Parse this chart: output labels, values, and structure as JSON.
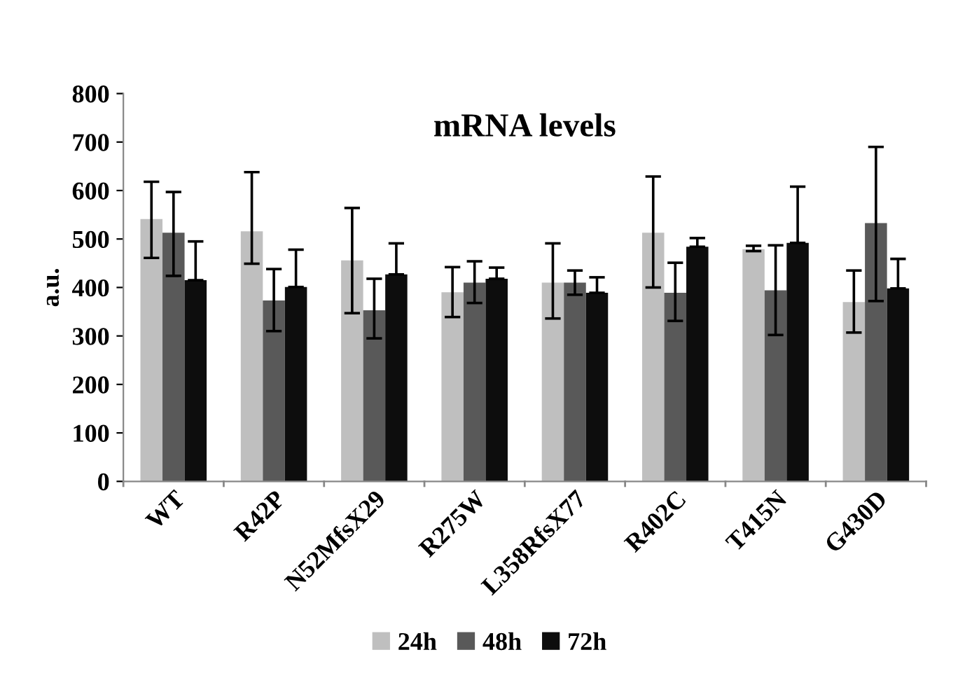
{
  "chart_data": {
    "type": "bar",
    "title": "mRNA levels",
    "ylabel": "a.u.",
    "categories": [
      "WT",
      "R42P",
      "N52MfsX29",
      "R275W",
      "L358RfsX77",
      "R402C",
      "T415N",
      "G430D"
    ],
    "series": [
      {
        "name": "24h",
        "color": "#bfbfbf",
        "values": [
          541,
          516,
          456,
          390,
          410,
          513,
          479,
          370
        ],
        "errors": [
          [
            461,
            618
          ],
          [
            449,
            638
          ],
          [
            347,
            564
          ],
          [
            339,
            442
          ],
          [
            336,
            491
          ],
          [
            400,
            629
          ],
          [
            475,
            486
          ],
          [
            307,
            435
          ]
        ]
      },
      {
        "name": "48h",
        "color": "#595959",
        "values": [
          513,
          373,
          353,
          410,
          410,
          389,
          394,
          533
        ],
        "errors": [
          [
            424,
            597
          ],
          [
            310,
            438
          ],
          [
            295,
            418
          ],
          [
            368,
            454
          ],
          [
            385,
            435
          ],
          [
            331,
            451
          ],
          [
            302,
            487
          ],
          [
            372,
            690
          ]
        ]
      },
      {
        "name": "72h",
        "color": "#0d0d0d",
        "values": [
          415,
          401,
          427,
          418,
          389,
          484,
          492,
          398
        ],
        "errors": [
          [
            415,
            495
          ],
          [
            401,
            478
          ],
          [
            427,
            491
          ],
          [
            418,
            441
          ],
          [
            389,
            421
          ],
          [
            484,
            502
          ],
          [
            492,
            608
          ],
          [
            398,
            459
          ]
        ]
      }
    ],
    "ylim": [
      0,
      800
    ],
    "yticks": [
      0,
      100,
      200,
      300,
      400,
      500,
      600,
      700,
      800
    ],
    "grid": false,
    "legend": "bottom"
  }
}
